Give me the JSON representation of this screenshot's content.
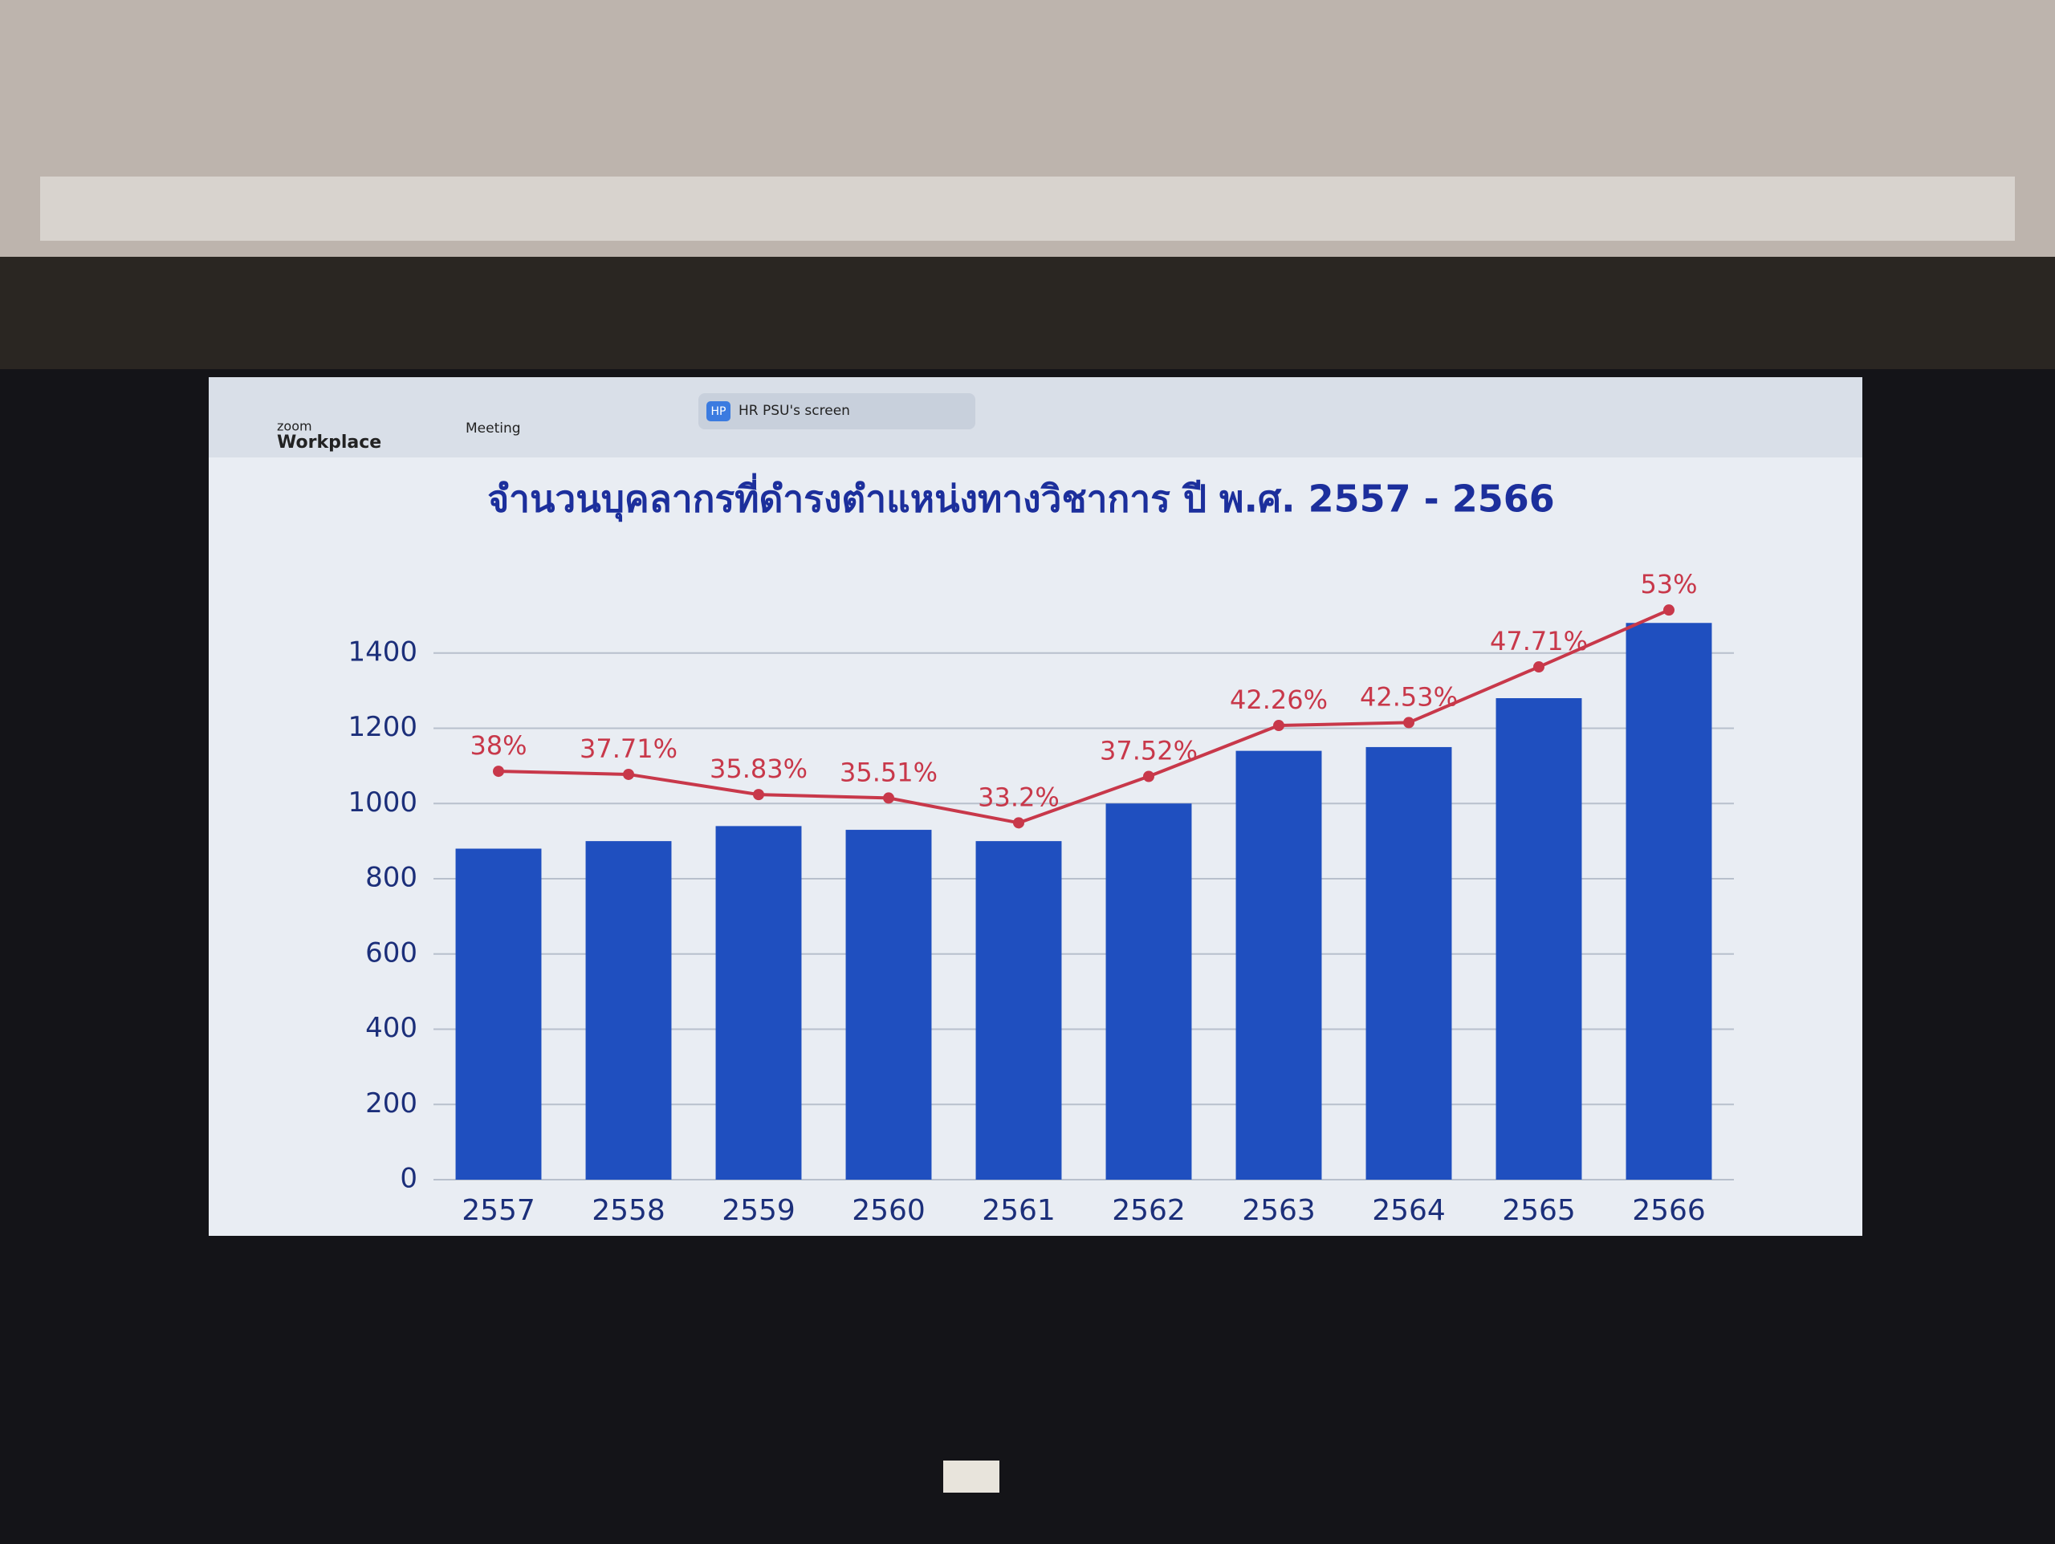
{
  "toolbar": {
    "brand_small": "zoom",
    "brand": "Workplace",
    "menu": "Meeting",
    "badge": "HP",
    "share": "HR PSU's screen"
  },
  "chart_data": {
    "type": "bar",
    "title": "จำนวนบุคลากรที่ดำรงตำแหน่งทางวิชาการ ปี พ.ศ. 2557 - 2566",
    "categories": [
      "2557",
      "2558",
      "2559",
      "2560",
      "2561",
      "2562",
      "2563",
      "2564",
      "2565",
      "2566"
    ],
    "series": [
      {
        "color": "#1f4fbf",
        "values": [
          880,
          900,
          940,
          930,
          900,
          1000,
          1140,
          1150,
          1280,
          1480
        ]
      },
      {
        "type": "line",
        "axis": "y2",
        "color": "#c8384a",
        "values": [
          38,
          37.71,
          35.83,
          35.51,
          33.2,
          37.52,
          42.26,
          42.53,
          47.71,
          53
        ],
        "value_labels": [
          "38%",
          "37.71%",
          "35.83%",
          "35.51%",
          "33.2%",
          "37.52%",
          "42.26%",
          "42.53%",
          "47.71%",
          "53%"
        ]
      }
    ],
    "ylim": [
      0,
      1600
    ],
    "yticks": [
      0,
      200,
      400,
      600,
      800,
      1000,
      1200,
      1400
    ],
    "y2lim": [
      0,
      56
    ],
    "grid": true
  }
}
